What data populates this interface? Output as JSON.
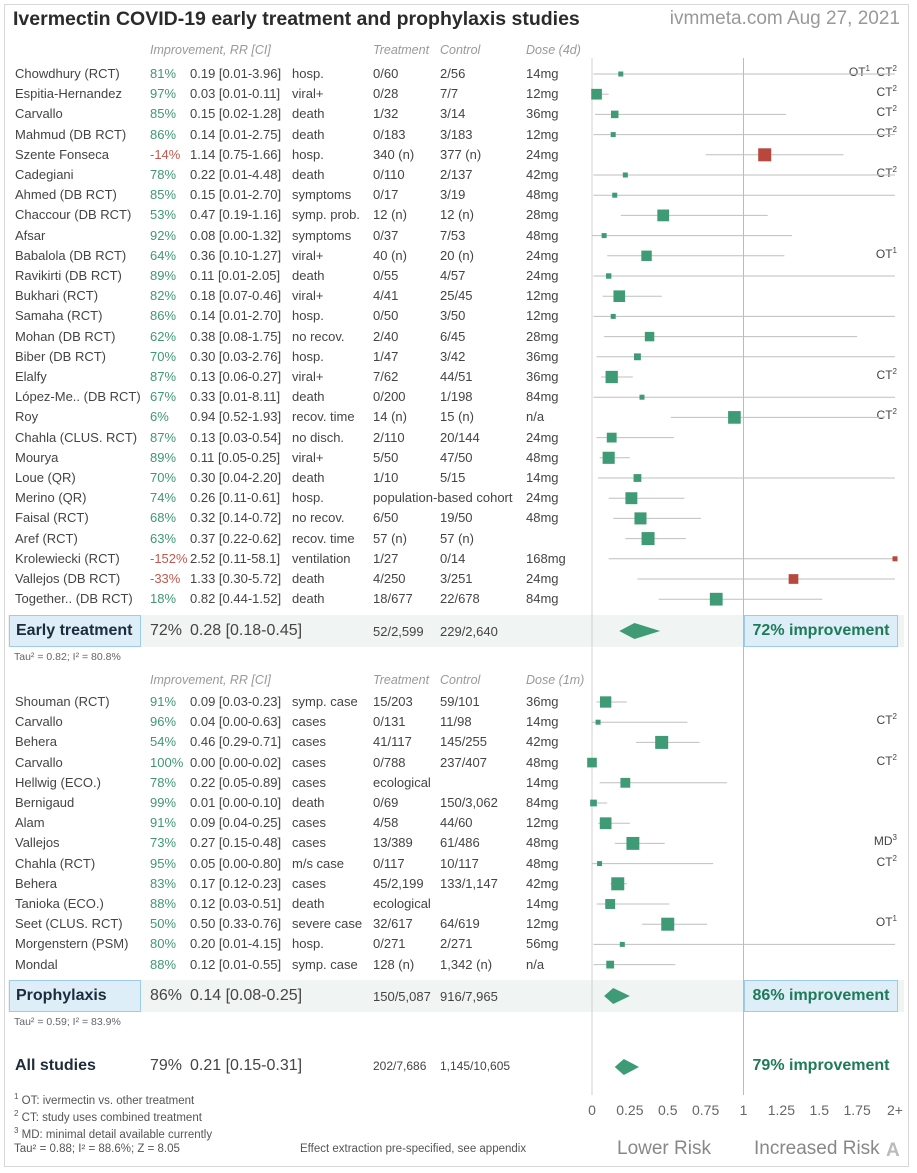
{
  "title": "Ivermectin COVID-19 early treatment and prophylaxis studies",
  "site": "ivmmeta.com Aug 27, 2021",
  "headers": {
    "improvement": "Improvement, RR [CI]",
    "treatment": "Treatment",
    "control": "Control",
    "dose_early": "Dose (4d)",
    "dose_proph": "Dose (1m)"
  },
  "chart_data": {
    "type": "forest",
    "x_axis": {
      "ticks": [
        "0",
        "0.25",
        "0.5",
        "0.75",
        "1",
        "1.25",
        "1.5",
        "1.75",
        "2+"
      ],
      "tick_values": [
        0,
        0.25,
        0.5,
        0.75,
        1,
        1.25,
        1.5,
        1.75,
        2
      ],
      "xlim": [
        0,
        2
      ],
      "reference_line": 1,
      "lower_label": "Lower Risk",
      "upper_label": "Increased Risk"
    },
    "early_treatment": {
      "studies": [
        {
          "name": "Chowdhury (RCT)",
          "improvement": "81%",
          "rr": 0.19,
          "ci": [
            0.01,
            3.96
          ],
          "rr_text": "0.19 [0.01-3.96]",
          "outcome": "hosp.",
          "treatment": "0/60",
          "control": "2/56",
          "dose": "14mg",
          "note": "OT",
          "note_sup": "1",
          "note2": "CT",
          "note2_sup": "2"
        },
        {
          "name": "Espitia-Hernandez",
          "improvement": "97%",
          "rr": 0.03,
          "ci": [
            0.01,
            0.11
          ],
          "rr_text": "0.03 [0.01-0.11]",
          "outcome": "viral+",
          "treatment": "0/28",
          "control": "7/7",
          "dose": "12mg",
          "note": "CT",
          "note_sup": "2"
        },
        {
          "name": "Carvallo",
          "improvement": "85%",
          "rr": 0.15,
          "ci": [
            0.02,
            1.28
          ],
          "rr_text": "0.15 [0.02-1.28]",
          "outcome": "death",
          "treatment": "1/32",
          "control": "3/14",
          "dose": "36mg",
          "note": "CT",
          "note_sup": "2"
        },
        {
          "name": "Mahmud (DB RCT)",
          "improvement": "86%",
          "rr": 0.14,
          "ci": [
            0.01,
            2.75
          ],
          "rr_text": "0.14 [0.01-2.75]",
          "outcome": "death",
          "treatment": "0/183",
          "control": "3/183",
          "dose": "12mg",
          "note": "CT",
          "note_sup": "2"
        },
        {
          "name": "Szente Fonseca",
          "improvement": "-14%",
          "rr": 1.14,
          "ci": [
            0.75,
            1.66
          ],
          "rr_text": "1.14 [0.75-1.66]",
          "outcome": "hosp.",
          "treatment": "340 (n)",
          "control": "377 (n)",
          "dose": "24mg"
        },
        {
          "name": "Cadegiani",
          "improvement": "78%",
          "rr": 0.22,
          "ci": [
            0.01,
            4.48
          ],
          "rr_text": "0.22 [0.01-4.48]",
          "outcome": "death",
          "treatment": "0/110",
          "control": "2/137",
          "dose": "42mg",
          "note": "CT",
          "note_sup": "2"
        },
        {
          "name": "Ahmed (DB RCT)",
          "improvement": "85%",
          "rr": 0.15,
          "ci": [
            0.01,
            2.7
          ],
          "rr_text": "0.15 [0.01-2.70]",
          "outcome": "symptoms",
          "treatment": "0/17",
          "control": "3/19",
          "dose": "48mg"
        },
        {
          "name": "Chaccour (DB RCT)",
          "improvement": "53%",
          "rr": 0.47,
          "ci": [
            0.19,
            1.16
          ],
          "rr_text": "0.47 [0.19-1.16]",
          "outcome": "symp. prob.",
          "treatment": "12 (n)",
          "control": "12 (n)",
          "dose": "28mg"
        },
        {
          "name": "Afsar",
          "improvement": "92%",
          "rr": 0.08,
          "ci": [
            0.0,
            1.32
          ],
          "rr_text": "0.08 [0.00-1.32]",
          "outcome": "symptoms",
          "treatment": "0/37",
          "control": "7/53",
          "dose": "48mg"
        },
        {
          "name": "Babalola (DB RCT)",
          "improvement": "64%",
          "rr": 0.36,
          "ci": [
            0.1,
            1.27
          ],
          "rr_text": "0.36 [0.10-1.27]",
          "outcome": "viral+",
          "treatment": "40 (n)",
          "control": "20 (n)",
          "dose": "24mg",
          "note": "OT",
          "note_sup": "1"
        },
        {
          "name": "Ravikirti (DB RCT)",
          "improvement": "89%",
          "rr": 0.11,
          "ci": [
            0.01,
            2.05
          ],
          "rr_text": "0.11 [0.01-2.05]",
          "outcome": "death",
          "treatment": "0/55",
          "control": "4/57",
          "dose": "24mg"
        },
        {
          "name": "Bukhari (RCT)",
          "improvement": "82%",
          "rr": 0.18,
          "ci": [
            0.07,
            0.46
          ],
          "rr_text": "0.18 [0.07-0.46]",
          "outcome": "viral+",
          "treatment": "4/41",
          "control": "25/45",
          "dose": "12mg"
        },
        {
          "name": "Samaha (RCT)",
          "improvement": "86%",
          "rr": 0.14,
          "ci": [
            0.01,
            2.7
          ],
          "rr_text": "0.14 [0.01-2.70]",
          "outcome": "hosp.",
          "treatment": "0/50",
          "control": "3/50",
          "dose": "12mg"
        },
        {
          "name": "Mohan (DB RCT)",
          "improvement": "62%",
          "rr": 0.38,
          "ci": [
            0.08,
            1.75
          ],
          "rr_text": "0.38 [0.08-1.75]",
          "outcome": "no recov.",
          "treatment": "2/40",
          "control": "6/45",
          "dose": "28mg"
        },
        {
          "name": "Biber (DB RCT)",
          "improvement": "70%",
          "rr": 0.3,
          "ci": [
            0.03,
            2.76
          ],
          "rr_text": "0.30 [0.03-2.76]",
          "outcome": "hosp.",
          "treatment": "1/47",
          "control": "3/42",
          "dose": "36mg"
        },
        {
          "name": "Elalfy",
          "improvement": "87%",
          "rr": 0.13,
          "ci": [
            0.06,
            0.27
          ],
          "rr_text": "0.13 [0.06-0.27]",
          "outcome": "viral+",
          "treatment": "7/62",
          "control": "44/51",
          "dose": "36mg",
          "note": "CT",
          "note_sup": "2"
        },
        {
          "name": "López-Me.. (DB RCT)",
          "improvement": "67%",
          "rr": 0.33,
          "ci": [
            0.01,
            8.11
          ],
          "rr_text": "0.33 [0.01-8.11]",
          "outcome": "death",
          "treatment": "0/200",
          "control": "1/198",
          "dose": "84mg"
        },
        {
          "name": "Roy",
          "improvement": "6%",
          "rr": 0.94,
          "ci": [
            0.52,
            1.93
          ],
          "rr_text": "0.94 [0.52-1.93]",
          "outcome": "recov. time",
          "treatment": "14 (n)",
          "control": "15 (n)",
          "dose": "n/a",
          "note": "CT",
          "note_sup": "2"
        },
        {
          "name": "Chahla (CLUS. RCT)",
          "improvement": "87%",
          "rr": 0.13,
          "ci": [
            0.03,
            0.54
          ],
          "rr_text": "0.13 [0.03-0.54]",
          "outcome": "no disch.",
          "treatment": "2/110",
          "control": "20/144",
          "dose": "24mg"
        },
        {
          "name": "Mourya",
          "improvement": "89%",
          "rr": 0.11,
          "ci": [
            0.05,
            0.25
          ],
          "rr_text": "0.11 [0.05-0.25]",
          "outcome": "viral+",
          "treatment": "5/50",
          "control": "47/50",
          "dose": "48mg"
        },
        {
          "name": "Loue (QR)",
          "improvement": "70%",
          "rr": 0.3,
          "ci": [
            0.04,
            2.2
          ],
          "rr_text": "0.30 [0.04-2.20]",
          "outcome": "death",
          "treatment": "1/10",
          "control": "5/15",
          "dose": "14mg"
        },
        {
          "name": "Merino (QR)",
          "improvement": "74%",
          "rr": 0.26,
          "ci": [
            0.11,
            0.61
          ],
          "rr_text": "0.26 [0.11-0.61]",
          "outcome": "hosp.",
          "treatment": "population-based cohort",
          "control": "",
          "dose": "24mg"
        },
        {
          "name": "Faisal (RCT)",
          "improvement": "68%",
          "rr": 0.32,
          "ci": [
            0.14,
            0.72
          ],
          "rr_text": "0.32 [0.14-0.72]",
          "outcome": "no recov.",
          "treatment": "6/50",
          "control": "19/50",
          "dose": "48mg"
        },
        {
          "name": "Aref (RCT)",
          "improvement": "63%",
          "rr": 0.37,
          "ci": [
            0.22,
            0.62
          ],
          "rr_text": "0.37 [0.22-0.62]",
          "outcome": "recov. time",
          "treatment": "57 (n)",
          "control": "57 (n)",
          "dose": ""
        },
        {
          "name": "Krolewiecki (RCT)",
          "improvement": "-152%",
          "rr": 2.52,
          "ci": [
            0.11,
            58.1
          ],
          "rr_text": "2.52 [0.11-58.1]",
          "outcome": "ventilation",
          "treatment": "1/27",
          "control": "0/14",
          "dose": "168mg"
        },
        {
          "name": "Vallejos (DB RCT)",
          "improvement": "-33%",
          "rr": 1.33,
          "ci": [
            0.3,
            5.72
          ],
          "rr_text": "1.33 [0.30-5.72]",
          "outcome": "death",
          "treatment": "4/250",
          "control": "3/251",
          "dose": "24mg"
        },
        {
          "name": "Together.. (DB RCT)",
          "improvement": "18%",
          "rr": 0.82,
          "ci": [
            0.44,
            1.52
          ],
          "rr_text": "0.82 [0.44-1.52]",
          "outcome": "death",
          "treatment": "18/677",
          "control": "22/678",
          "dose": "84mg"
        }
      ],
      "summary": {
        "label": "Early treatment",
        "improvement": "72%",
        "rr": 0.28,
        "ci": [
          0.18,
          0.45
        ],
        "rr_text": "0.28 [0.18-0.45]",
        "treatment": "52/2,599",
        "control": "229/2,640",
        "result": "72% improvement",
        "tau": "Tau² = 0.82; I² = 80.8%"
      }
    },
    "prophylaxis": {
      "studies": [
        {
          "name": "Shouman (RCT)",
          "improvement": "91%",
          "rr": 0.09,
          "ci": [
            0.03,
            0.23
          ],
          "rr_text": "0.09 [0.03-0.23]",
          "outcome": "symp. case",
          "treatment": "15/203",
          "control": "59/101",
          "dose": "36mg"
        },
        {
          "name": "Carvallo",
          "improvement": "96%",
          "rr": 0.04,
          "ci": [
            0.0,
            0.63
          ],
          "rr_text": "0.04 [0.00-0.63]",
          "outcome": "cases",
          "treatment": "0/131",
          "control": "11/98",
          "dose": "14mg",
          "note": "CT",
          "note_sup": "2"
        },
        {
          "name": "Behera",
          "improvement": "54%",
          "rr": 0.46,
          "ci": [
            0.29,
            0.71
          ],
          "rr_text": "0.46 [0.29-0.71]",
          "outcome": "cases",
          "treatment": "41/117",
          "control": "145/255",
          "dose": "42mg"
        },
        {
          "name": "Carvallo",
          "improvement": "100%",
          "rr": 0.0,
          "ci": [
            0.0,
            0.02
          ],
          "rr_text": "0.00 [0.00-0.02]",
          "outcome": "cases",
          "treatment": "0/788",
          "control": "237/407",
          "dose": "48mg",
          "note": "CT",
          "note_sup": "2"
        },
        {
          "name": "Hellwig (ECO.)",
          "improvement": "78%",
          "rr": 0.22,
          "ci": [
            0.05,
            0.89
          ],
          "rr_text": "0.22 [0.05-0.89]",
          "outcome": "cases",
          "treatment": "ecological",
          "control": "",
          "dose": "14mg"
        },
        {
          "name": "Bernigaud",
          "improvement": "99%",
          "rr": 0.01,
          "ci": [
            0.0,
            0.1
          ],
          "rr_text": "0.01 [0.00-0.10]",
          "outcome": "death",
          "treatment": "0/69",
          "control": "150/3,062",
          "dose": "84mg"
        },
        {
          "name": "Alam",
          "improvement": "91%",
          "rr": 0.09,
          "ci": [
            0.04,
            0.25
          ],
          "rr_text": "0.09 [0.04-0.25]",
          "outcome": "cases",
          "treatment": "4/58",
          "control": "44/60",
          "dose": "12mg"
        },
        {
          "name": "Vallejos",
          "improvement": "73%",
          "rr": 0.27,
          "ci": [
            0.15,
            0.48
          ],
          "rr_text": "0.27 [0.15-0.48]",
          "outcome": "cases",
          "treatment": "13/389",
          "control": "61/486",
          "dose": "48mg",
          "note": "MD",
          "note_sup": "3"
        },
        {
          "name": "Chahla (RCT)",
          "improvement": "95%",
          "rr": 0.05,
          "ci": [
            0.0,
            0.8
          ],
          "rr_text": "0.05 [0.00-0.80]",
          "outcome": "m/s case",
          "treatment": "0/117",
          "control": "10/117",
          "dose": "48mg",
          "note": "CT",
          "note_sup": "2"
        },
        {
          "name": "Behera",
          "improvement": "83%",
          "rr": 0.17,
          "ci": [
            0.12,
            0.23
          ],
          "rr_text": "0.17 [0.12-0.23]",
          "outcome": "cases",
          "treatment": "45/2,199",
          "control": "133/1,147",
          "dose": "42mg"
        },
        {
          "name": "Tanioka (ECO.)",
          "improvement": "88%",
          "rr": 0.12,
          "ci": [
            0.03,
            0.51
          ],
          "rr_text": "0.12 [0.03-0.51]",
          "outcome": "death",
          "treatment": "ecological",
          "control": "",
          "dose": "14mg"
        },
        {
          "name": "Seet (CLUS. RCT)",
          "improvement": "50%",
          "rr": 0.5,
          "ci": [
            0.33,
            0.76
          ],
          "rr_text": "0.50 [0.33-0.76]",
          "outcome": "severe case",
          "treatment": "32/617",
          "control": "64/619",
          "dose": "12mg",
          "note": "OT",
          "note_sup": "1"
        },
        {
          "name": "Morgenstern (PSM)",
          "improvement": "80%",
          "rr": 0.2,
          "ci": [
            0.01,
            4.15
          ],
          "rr_text": "0.20 [0.01-4.15]",
          "outcome": "hosp.",
          "treatment": "0/271",
          "control": "2/271",
          "dose": "56mg"
        },
        {
          "name": "Mondal",
          "improvement": "88%",
          "rr": 0.12,
          "ci": [
            0.01,
            0.55
          ],
          "rr_text": "0.12 [0.01-0.55]",
          "outcome": "symp. case",
          "treatment": "128 (n)",
          "control": "1,342 (n)",
          "dose": "n/a"
        }
      ],
      "summary": {
        "label": "Prophylaxis",
        "improvement": "86%",
        "rr": 0.14,
        "ci": [
          0.08,
          0.25
        ],
        "rr_text": "0.14 [0.08-0.25]",
        "treatment": "150/5,087",
        "control": "916/7,965",
        "result": "86% improvement",
        "tau": "Tau² = 0.59; I² = 83.9%"
      }
    },
    "all_studies": {
      "label": "All studies",
      "improvement": "79%",
      "rr": 0.21,
      "ci": [
        0.15,
        0.31
      ],
      "rr_text": "0.21 [0.15-0.31]",
      "treatment": "202/7,686",
      "control": "1,145/10,605",
      "result": "79% improvement"
    }
  },
  "footnotes": {
    "ot": "OT: ivermectin vs. other treatment",
    "ct": "CT: study uses combined treatment",
    "md": "MD: minimal detail available currently",
    "tau_all": "Tau² = 0.88; I² = 88.6%; Z = 8.05",
    "extraction": "Effect extraction pre-specified, see appendix",
    "corner": "A"
  },
  "colors": {
    "green": "#3e9b76",
    "red": "#b8473e",
    "ci_line": "#bfbfbf",
    "ref_line": "#bbbbbb"
  }
}
